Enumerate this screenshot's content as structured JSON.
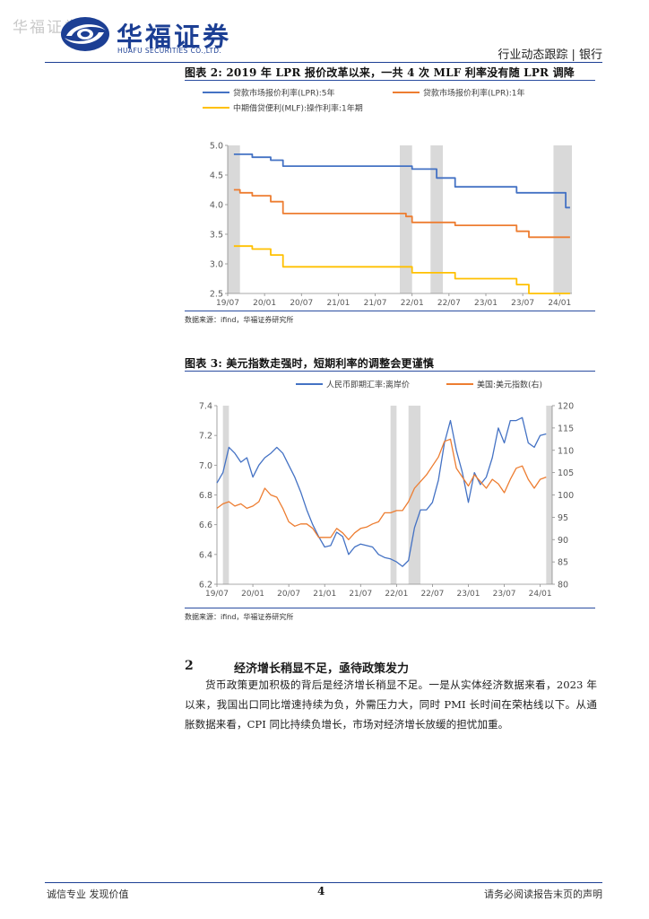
{
  "header": {
    "watermark": "华福证券",
    "brand_cn": "华福证券",
    "brand_en": "HUAFU SECURITIES CO.,LTD.",
    "section": "行业动态跟踪 | 银行",
    "brand_color": "#1c3f94"
  },
  "figure2": {
    "title": "图表 2: 2019 年 LPR 报价改革以来，一共 4 次 MLF 利率没有随 LPR 调降",
    "source": "数据来源：ifind，华福证券研究所"
  },
  "figure3": {
    "title": "图表 3: 美元指数走强时，短期利率的调整会更谨慎",
    "source": "数据来源：ifind，华福证券研究所"
  },
  "section2": {
    "number": "2",
    "title": "经济增长稍显不足，亟待政策发力",
    "paragraph": "货币政策更加积极的背后是经济增长稍显不足。一是从实体经济数据来看，2023 年以来，我国出口同比增速持续为负，外需压力大，同时 PMI 长时间在荣枯线以下。从通胀数据来看，CPI 同比持续负增长，市场对经济增长放缓的担忧加重。"
  },
  "footer": {
    "left": "诚信专业  发现价值",
    "page": "4",
    "right": "请务必阅读报告末页的声明"
  },
  "chart_data": [
    {
      "type": "line",
      "chart": "figure2",
      "x_type": "date",
      "x_range": [
        "2019-07",
        "2024-03"
      ],
      "x_ticks": [
        "19/07",
        "20/01",
        "20/07",
        "21/01",
        "21/07",
        "22/01",
        "22/07",
        "23/01",
        "23/07",
        "24/01"
      ],
      "ylim": [
        2.5,
        5.0
      ],
      "y_ticks": [
        "2.5",
        "3.0",
        "3.5",
        "4.0",
        "4.5",
        "5.0"
      ],
      "shaded_periods": [
        [
          "2019-07",
          "2019-09"
        ],
        [
          "2021-11",
          "2022-01"
        ],
        [
          "2022-04",
          "2022-06"
        ],
        [
          "2023-12",
          "2024-03"
        ]
      ],
      "legend": "top",
      "grid": false,
      "series": [
        {
          "name": "贷款市场报价利率(LPR):5年",
          "color": "#4472c4",
          "step": true,
          "points": [
            [
              "2019-08",
              4.85
            ],
            [
              "2019-11",
              4.8
            ],
            [
              "2020-02",
              4.75
            ],
            [
              "2020-04",
              4.65
            ],
            [
              "2022-01",
              4.6
            ],
            [
              "2022-05",
              4.45
            ],
            [
              "2022-08",
              4.3
            ],
            [
              "2023-06",
              4.2
            ],
            [
              "2024-02",
              3.95
            ]
          ]
        },
        {
          "name": "贷款市场报价利率(LPR):1年",
          "color": "#ed7d31",
          "step": true,
          "points": [
            [
              "2019-08",
              4.25
            ],
            [
              "2019-09",
              4.2
            ],
            [
              "2019-11",
              4.15
            ],
            [
              "2020-02",
              4.05
            ],
            [
              "2020-04",
              3.85
            ],
            [
              "2021-12",
              3.8
            ],
            [
              "2022-01",
              3.7
            ],
            [
              "2022-08",
              3.65
            ],
            [
              "2023-06",
              3.55
            ],
            [
              "2023-08",
              3.45
            ],
            [
              "2024-02",
              3.45
            ]
          ]
        },
        {
          "name": "中期借贷便利(MLF):操作利率:1年期",
          "color": "#ffc000",
          "step": true,
          "points": [
            [
              "2019-08",
              3.3
            ],
            [
              "2019-11",
              3.25
            ],
            [
              "2020-02",
              3.15
            ],
            [
              "2020-04",
              2.95
            ],
            [
              "2022-01",
              2.85
            ],
            [
              "2022-08",
              2.75
            ],
            [
              "2023-06",
              2.65
            ],
            [
              "2023-08",
              2.5
            ],
            [
              "2024-02",
              2.5
            ]
          ]
        }
      ]
    },
    {
      "type": "line",
      "chart": "figure3",
      "x_type": "date",
      "x_range": [
        "2019-07",
        "2024-03"
      ],
      "x_ticks": [
        "19/07",
        "20/01",
        "20/07",
        "21/01",
        "21/07",
        "22/01",
        "22/07",
        "23/01",
        "23/07",
        "24/01"
      ],
      "ylim_left": [
        6.2,
        7.4
      ],
      "y_ticks_left": [
        "6.2",
        "6.4",
        "6.6",
        "6.8",
        "7.0",
        "7.2",
        "7.4"
      ],
      "ylim_right": [
        80,
        120
      ],
      "y_ticks_right": [
        "80",
        "85",
        "90",
        "95",
        "100",
        "105",
        "110",
        "115",
        "120"
      ],
      "shaded_periods": [
        [
          "2019-08",
          "2019-09"
        ],
        [
          "2021-12",
          "2022-01"
        ],
        [
          "2022-03",
          "2022-05"
        ],
        [
          "2024-02",
          "2024-03"
        ]
      ],
      "legend": "top",
      "grid": false,
      "series": [
        {
          "name": "人民币即期汇率:离岸价",
          "color": "#4472c4",
          "axis": "left",
          "points": [
            [
              "2019-07",
              6.88
            ],
            [
              "2019-08",
              6.95
            ],
            [
              "2019-09",
              7.12
            ],
            [
              "2019-10",
              7.08
            ],
            [
              "2019-11",
              7.02
            ],
            [
              "2019-12",
              7.05
            ],
            [
              "2020-01",
              6.92
            ],
            [
              "2020-02",
              7.0
            ],
            [
              "2020-03",
              7.05
            ],
            [
              "2020-04",
              7.08
            ],
            [
              "2020-05",
              7.12
            ],
            [
              "2020-06",
              7.08
            ],
            [
              "2020-07",
              7.0
            ],
            [
              "2020-08",
              6.92
            ],
            [
              "2020-09",
              6.82
            ],
            [
              "2020-10",
              6.7
            ],
            [
              "2020-11",
              6.6
            ],
            [
              "2020-12",
              6.52
            ],
            [
              "2021-01",
              6.45
            ],
            [
              "2021-02",
              6.46
            ],
            [
              "2021-03",
              6.55
            ],
            [
              "2021-04",
              6.52
            ],
            [
              "2021-05",
              6.4
            ],
            [
              "2021-06",
              6.45
            ],
            [
              "2021-07",
              6.47
            ],
            [
              "2021-08",
              6.46
            ],
            [
              "2021-09",
              6.45
            ],
            [
              "2021-10",
              6.4
            ],
            [
              "2021-11",
              6.38
            ],
            [
              "2021-12",
              6.37
            ],
            [
              "2022-01",
              6.35
            ],
            [
              "2022-02",
              6.32
            ],
            [
              "2022-03",
              6.36
            ],
            [
              "2022-04",
              6.58
            ],
            [
              "2022-05",
              6.7
            ],
            [
              "2022-06",
              6.7
            ],
            [
              "2022-07",
              6.75
            ],
            [
              "2022-08",
              6.9
            ],
            [
              "2022-09",
              7.15
            ],
            [
              "2022-10",
              7.3
            ],
            [
              "2022-11",
              7.1
            ],
            [
              "2022-12",
              6.95
            ],
            [
              "2023-01",
              6.75
            ],
            [
              "2023-02",
              6.95
            ],
            [
              "2023-03",
              6.87
            ],
            [
              "2023-04",
              6.92
            ],
            [
              "2023-05",
              7.05
            ],
            [
              "2023-06",
              7.25
            ],
            [
              "2023-07",
              7.15
            ],
            [
              "2023-08",
              7.3
            ],
            [
              "2023-09",
              7.3
            ],
            [
              "2023-10",
              7.32
            ],
            [
              "2023-11",
              7.15
            ],
            [
              "2023-12",
              7.12
            ],
            [
              "2024-01",
              7.2
            ],
            [
              "2024-02",
              7.21
            ]
          ]
        },
        {
          "name": "美国:美元指数(右)",
          "color": "#ed7d31",
          "axis": "right",
          "points": [
            [
              "2019-07",
              97.0
            ],
            [
              "2019-08",
              98.0
            ],
            [
              "2019-09",
              98.5
            ],
            [
              "2019-10",
              97.5
            ],
            [
              "2019-11",
              98.0
            ],
            [
              "2019-12",
              97.0
            ],
            [
              "2020-01",
              97.5
            ],
            [
              "2020-02",
              98.5
            ],
            [
              "2020-03",
              101.5
            ],
            [
              "2020-04",
              100.0
            ],
            [
              "2020-05",
              99.5
            ],
            [
              "2020-06",
              97.0
            ],
            [
              "2020-07",
              94.0
            ],
            [
              "2020-08",
              93.0
            ],
            [
              "2020-09",
              93.5
            ],
            [
              "2020-10",
              93.5
            ],
            [
              "2020-11",
              92.5
            ],
            [
              "2020-12",
              90.5
            ],
            [
              "2021-01",
              90.5
            ],
            [
              "2021-02",
              90.5
            ],
            [
              "2021-03",
              92.5
            ],
            [
              "2021-04",
              91.5
            ],
            [
              "2021-05",
              90.0
            ],
            [
              "2021-06",
              91.5
            ],
            [
              "2021-07",
              92.5
            ],
            [
              "2021-08",
              92.8
            ],
            [
              "2021-09",
              93.5
            ],
            [
              "2021-10",
              94.0
            ],
            [
              "2021-11",
              96.0
            ],
            [
              "2021-12",
              96.0
            ],
            [
              "2022-01",
              96.5
            ],
            [
              "2022-02",
              96.5
            ],
            [
              "2022-03",
              98.5
            ],
            [
              "2022-04",
              101.5
            ],
            [
              "2022-05",
              103.0
            ],
            [
              "2022-06",
              104.5
            ],
            [
              "2022-07",
              106.5
            ],
            [
              "2022-08",
              108.5
            ],
            [
              "2022-09",
              112.0
            ],
            [
              "2022-10",
              112.5
            ],
            [
              "2022-11",
              106.0
            ],
            [
              "2022-12",
              104.0
            ],
            [
              "2023-01",
              102.0
            ],
            [
              "2023-02",
              104.5
            ],
            [
              "2023-03",
              103.0
            ],
            [
              "2023-04",
              101.5
            ],
            [
              "2023-05",
              103.5
            ],
            [
              "2023-06",
              102.5
            ],
            [
              "2023-07",
              100.5
            ],
            [
              "2023-08",
              103.5
            ],
            [
              "2023-09",
              106.0
            ],
            [
              "2023-10",
              106.5
            ],
            [
              "2023-11",
              103.5
            ],
            [
              "2023-12",
              101.5
            ],
            [
              "2024-01",
              103.5
            ],
            [
              "2024-02",
              104.0
            ]
          ]
        }
      ]
    }
  ]
}
